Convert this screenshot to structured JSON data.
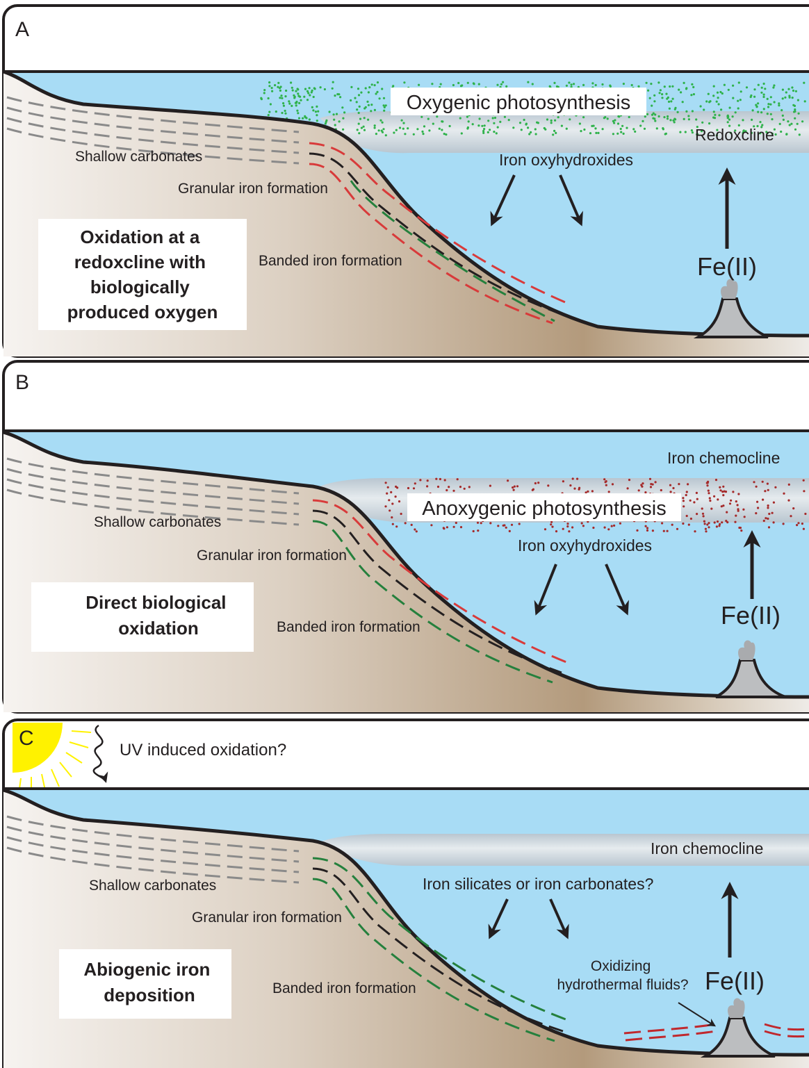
{
  "colors": {
    "water": "#a8dcf5",
    "seafloor_light": "#f3efeb",
    "seafloor_dark": "#b69c7f",
    "outline": "#231f20",
    "cline_band": "#c7d3dc",
    "oxygen_dots": "#2fb24b",
    "anoxygenic_dots": "#a52a2a",
    "carbonate_dash": "#8a8a8a",
    "red_dash": "#d83a3a",
    "black_dash": "#231f20",
    "green_dash": "#25803d",
    "vent": "#bcbec0",
    "sun": "#fff200"
  },
  "panels": [
    {
      "letter": "A",
      "caption_lines": [
        "Oxidation at a",
        "redoxcline with",
        "biologically",
        "produced oxygen"
      ],
      "shallow": "Shallow carbonates",
      "granular": "Granular iron formation",
      "banded": "Banded iron formation",
      "photosynthesis": "Oxygenic photosynthesis",
      "cline": "Redoxcline",
      "precipitate": "Iron oxyhydroxides",
      "fe": "Fe(II)"
    },
    {
      "letter": "B",
      "caption_lines": [
        "Direct biological",
        "oxidation"
      ],
      "shallow": "Shallow carbonates",
      "granular": "Granular iron formation",
      "banded": "Banded iron formation",
      "photosynthesis": "Anoxygenic photosynthesis",
      "cline": "Iron chemocline",
      "precipitate": "Iron oxyhydroxides",
      "fe": "Fe(II)"
    },
    {
      "letter": "C",
      "caption_lines": [
        "Abiogenic iron",
        "deposition"
      ],
      "shallow": "Shallow carbonates",
      "granular": "Granular iron formation",
      "banded": "Banded iron formation",
      "uv": "UV induced oxidation?",
      "cline": "Iron chemocline",
      "precipitate": "Iron silicates or iron carbonates?",
      "hydro_lines": [
        "Oxidizing",
        "hydrothermal fluids?"
      ],
      "fe": "Fe(II)"
    }
  ]
}
